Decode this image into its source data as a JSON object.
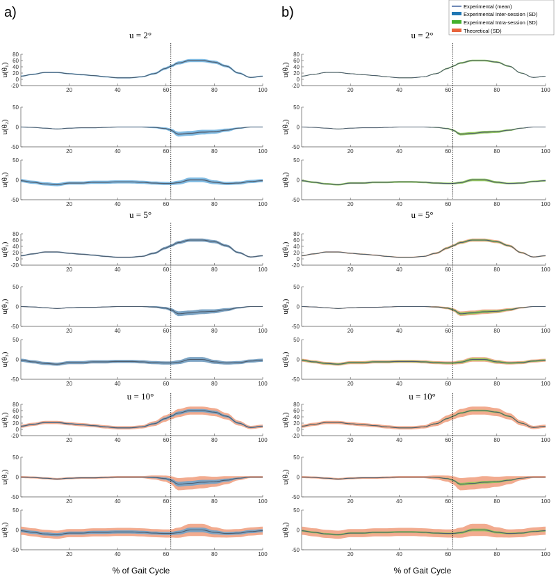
{
  "figure": {
    "panel_a_label": "a)",
    "panel_b_label": "b)",
    "xlabel": "% of Gait Cycle",
    "condition_titles": [
      "u = 2°",
      "u = 5°",
      "u = 10°"
    ],
    "ylabels": [
      "u(θ₁)",
      "u(θ₂)",
      "u(θ₃)"
    ]
  },
  "legend": {
    "position": "top-right",
    "items": [
      {
        "label": "Experimental (mean)",
        "color": "#2f5597",
        "kind": "line"
      },
      {
        "label": "Experimental Inter-session (SD)",
        "color": "#1f77b4",
        "kind": "band"
      },
      {
        "label": "Experimental Intra-session (SD)",
        "color": "#44b02c",
        "kind": "band"
      },
      {
        "label": "Theoretical (SD)",
        "color": "#e8643c",
        "kind": "band"
      }
    ]
  },
  "colors": {
    "mean_line": "#4d5d6e",
    "inter_band": "#4a9fd8",
    "intra_band": "#7dc94e",
    "theory_band": "#ee8f6a",
    "gait_marker": "#000000"
  },
  "chart_data": {
    "type": "line",
    "x_range": [
      0,
      100
    ],
    "x_ticks": [
      20,
      40,
      60,
      80,
      100
    ],
    "gait_event_x": 62,
    "conditions": [
      {
        "u": 2,
        "theory_sd_scale": 0.25,
        "inter_sd_scale": 1.0,
        "intra_sd_scale": 0.55
      },
      {
        "u": 5,
        "theory_sd_scale": 0.6,
        "inter_sd_scale": 1.0,
        "intra_sd_scale": 0.55
      },
      {
        "u": 10,
        "theory_sd_scale": 1.6,
        "inter_sd_scale": 1.0,
        "intra_sd_scale": 0.55
      }
    ],
    "angles": [
      {
        "name": "theta1",
        "ylim": [
          -20,
          80
        ],
        "y_ticks": [
          -20,
          0,
          20,
          40,
          60,
          80
        ],
        "x": [
          0,
          5,
          10,
          15,
          20,
          25,
          30,
          35,
          40,
          45,
          50,
          55,
          60,
          62,
          65,
          70,
          75,
          80,
          85,
          90,
          95,
          100
        ],
        "mean": [
          10,
          16,
          22,
          22,
          18,
          15,
          12,
          8,
          5,
          5,
          8,
          18,
          35,
          42,
          52,
          60,
          60,
          55,
          42,
          20,
          6,
          10
        ],
        "sd_base": [
          2,
          2,
          2,
          2,
          2,
          2,
          2,
          2,
          2,
          2,
          2,
          3,
          4,
          4,
          5,
          5,
          5,
          5,
          4,
          3,
          2,
          2
        ]
      },
      {
        "name": "theta2",
        "ylim": [
          -50,
          50
        ],
        "y_ticks": [
          -50,
          0,
          50
        ],
        "x": [
          0,
          5,
          10,
          15,
          20,
          25,
          30,
          35,
          40,
          45,
          50,
          55,
          60,
          62,
          65,
          70,
          75,
          80,
          85,
          90,
          95,
          100
        ],
        "mean": [
          0,
          -1,
          -3,
          -5,
          -3,
          -2,
          -2,
          -1,
          0,
          0,
          0,
          -1,
          -4,
          -8,
          -18,
          -16,
          -13,
          -12,
          -8,
          -3,
          0,
          0
        ],
        "sd_base": [
          1,
          1,
          1,
          1,
          1,
          1,
          1,
          1,
          1,
          1,
          1,
          2,
          3,
          4,
          6,
          6,
          6,
          5,
          4,
          2,
          1,
          1
        ]
      },
      {
        "name": "theta3",
        "ylim": [
          -50,
          50
        ],
        "y_ticks": [
          -50,
          0,
          50
        ],
        "x": [
          0,
          5,
          10,
          15,
          20,
          25,
          30,
          35,
          40,
          45,
          50,
          55,
          60,
          62,
          65,
          70,
          75,
          80,
          85,
          90,
          95,
          100
        ],
        "mean": [
          -2,
          -6,
          -10,
          -12,
          -8,
          -8,
          -6,
          -6,
          -5,
          -5,
          -6,
          -8,
          -9,
          -9,
          -7,
          0,
          0,
          -6,
          -9,
          -8,
          -4,
          -2
        ],
        "sd_base": [
          4,
          4,
          4,
          4,
          4,
          4,
          4,
          4,
          4,
          4,
          4,
          4,
          4,
          4,
          5,
          6,
          6,
          5,
          4,
          4,
          4,
          4
        ]
      }
    ],
    "panels": [
      {
        "id": "a",
        "bands": [
          "theory",
          "inter"
        ]
      },
      {
        "id": "b",
        "bands": [
          "theory",
          "intra"
        ]
      }
    ]
  }
}
